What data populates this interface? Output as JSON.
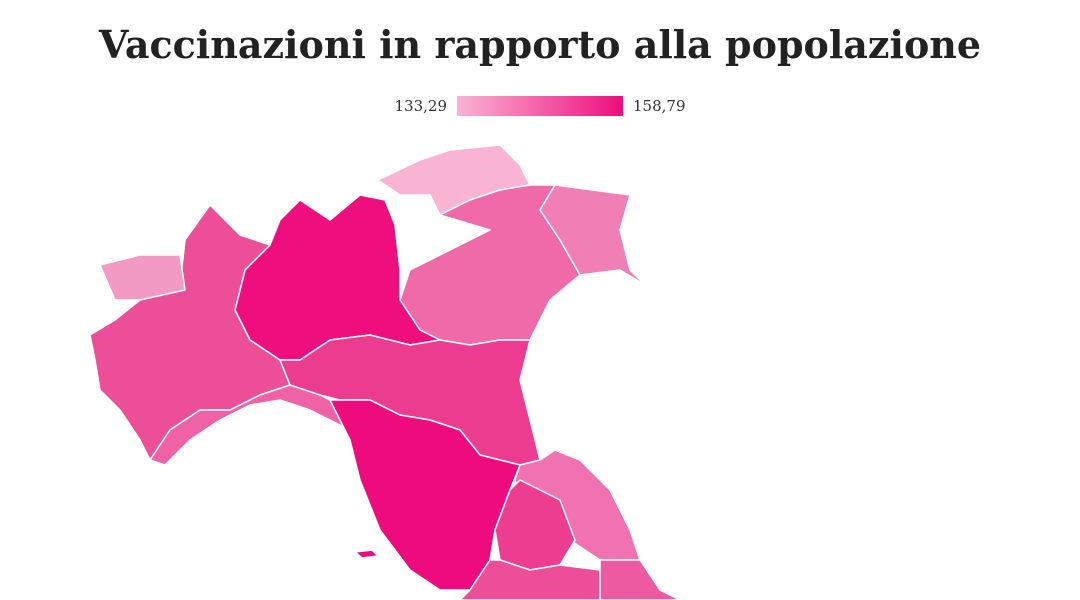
{
  "title": "Vaccinazioni in rapporto alla popolazione",
  "legend": {
    "min_label": "133,29",
    "max_label": "158,79"
  }
}
